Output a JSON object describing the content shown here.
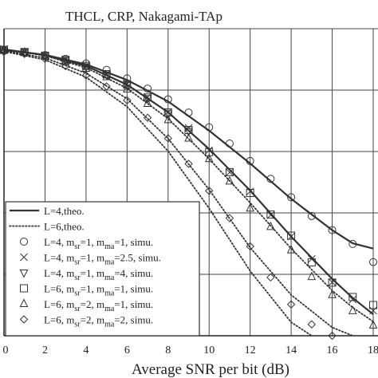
{
  "chart_data": {
    "type": "line",
    "title": "THCL, CRP, Nakagami-TAp",
    "xlabel": "Average SNR per bit (dB)",
    "ylabel": "",
    "xlim": [
      0,
      18
    ],
    "ylim": [
      0,
      1
    ],
    "x_ticks": [
      "0",
      "2",
      "4",
      "6",
      "8",
      "10",
      "12",
      "14",
      "16",
      "18"
    ],
    "grid": true,
    "legend_position": "bottom-left",
    "legend": [
      {
        "label_parts": [
          {
            "t": "L=4,theo."
          }
        ],
        "style": "solid"
      },
      {
        "label_parts": [
          {
            "t": "L=6,theo."
          }
        ],
        "style": "dotted"
      },
      {
        "label_parts": [
          {
            "t": "L=4, m"
          },
          {
            "t": "sr",
            "sub": true
          },
          {
            "t": "=1, m"
          },
          {
            "t": "ma",
            "sub": true
          },
          {
            "t": "=1, simu."
          }
        ],
        "marker": "circle"
      },
      {
        "label_parts": [
          {
            "t": "L=4, m"
          },
          {
            "t": "sr",
            "sub": true
          },
          {
            "t": "=1, m"
          },
          {
            "t": "ma",
            "sub": true
          },
          {
            "t": "=2.5, simu."
          }
        ],
        "marker": "cross"
      },
      {
        "label_parts": [
          {
            "t": "L=4, m"
          },
          {
            "t": "sr",
            "sub": true
          },
          {
            "t": "=1, m"
          },
          {
            "t": "ma",
            "sub": true
          },
          {
            "t": "=4, simu."
          }
        ],
        "marker": "triangle-down"
      },
      {
        "label_parts": [
          {
            "t": "L=6, m"
          },
          {
            "t": "sr",
            "sub": true
          },
          {
            "t": "=1, m"
          },
          {
            "t": "ma",
            "sub": true
          },
          {
            "t": "=1, simu."
          }
        ],
        "marker": "square"
      },
      {
        "label_parts": [
          {
            "t": "L=6, m"
          },
          {
            "t": "sr",
            "sub": true
          },
          {
            "t": "=2, m"
          },
          {
            "t": "ma",
            "sub": true
          },
          {
            "t": "=1, simu."
          }
        ],
        "marker": "triangle-up"
      },
      {
        "label_parts": [
          {
            "t": "L=6, m"
          },
          {
            "t": "sr",
            "sub": true
          },
          {
            "t": "=2, m"
          },
          {
            "t": "ma",
            "sub": true
          },
          {
            "t": "=2, simu."
          }
        ],
        "marker": "diamond"
      }
    ],
    "theory_curves": [
      {
        "style": "solid",
        "points": [
          [
            0,
            0.931
          ],
          [
            2,
            0.915
          ],
          [
            4,
            0.884
          ],
          [
            6,
            0.833
          ],
          [
            8,
            0.763
          ],
          [
            10,
            0.668
          ],
          [
            12,
            0.561
          ],
          [
            14,
            0.446
          ],
          [
            16,
            0.344
          ],
          [
            17,
            0.301
          ],
          [
            18,
            0.284
          ]
        ]
      },
      {
        "style": "solid",
        "points": [
          [
            0,
            0.933
          ],
          [
            2,
            0.914
          ],
          [
            4,
            0.879
          ],
          [
            6,
            0.818
          ],
          [
            8,
            0.728
          ],
          [
            10,
            0.608
          ],
          [
            12,
            0.473
          ],
          [
            14,
            0.323
          ],
          [
            16,
            0.185
          ],
          [
            17,
            0.123
          ],
          [
            18,
            0.07
          ]
        ]
      },
      {
        "style": "dotted",
        "points": [
          [
            0,
            0.933
          ],
          [
            2,
            0.912
          ],
          [
            4,
            0.873
          ],
          [
            6,
            0.806
          ],
          [
            8,
            0.707
          ],
          [
            10,
            0.576
          ],
          [
            12,
            0.433
          ],
          [
            14,
            0.284
          ],
          [
            16,
            0.147
          ],
          [
            17,
            0.092
          ],
          [
            18,
            0.046
          ]
        ]
      },
      {
        "style": "dotted",
        "points": [
          [
            0,
            0.928
          ],
          [
            2,
            0.905
          ],
          [
            4,
            0.855
          ],
          [
            6,
            0.772
          ],
          [
            8,
            0.642
          ],
          [
            10,
            0.476
          ],
          [
            12,
            0.287
          ],
          [
            14,
            0.133
          ],
          [
            16,
            0.027
          ],
          [
            17,
            0.0
          ]
        ]
      },
      {
        "style": "dotted",
        "points": [
          [
            0,
            0.926
          ],
          [
            2,
            0.899
          ],
          [
            4,
            0.842
          ],
          [
            6,
            0.746
          ],
          [
            8,
            0.601
          ],
          [
            10,
            0.415
          ],
          [
            12,
            0.211
          ],
          [
            14,
            0.044
          ],
          [
            15,
            0.0
          ]
        ]
      }
    ],
    "markers": [
      {
        "marker": "circle",
        "points": [
          [
            0,
            0.93
          ],
          [
            1,
            0.923
          ],
          [
            2,
            0.914
          ],
          [
            3,
            0.902
          ],
          [
            4,
            0.887
          ],
          [
            5,
            0.866
          ],
          [
            6,
            0.838
          ],
          [
            7,
            0.805
          ],
          [
            8,
            0.77
          ],
          [
            9,
            0.727
          ],
          [
            10,
            0.679
          ],
          [
            11,
            0.626
          ],
          [
            12,
            0.569
          ],
          [
            13,
            0.511
          ],
          [
            14,
            0.451
          ],
          [
            15,
            0.39
          ],
          [
            16,
            0.344
          ],
          [
            17,
            0.299
          ],
          [
            18,
            0.24
          ]
        ]
      },
      {
        "marker": "cross",
        "points": [
          [
            0,
            0.934
          ],
          [
            1,
            0.925
          ],
          [
            2,
            0.913
          ],
          [
            3,
            0.899
          ],
          [
            4,
            0.88
          ],
          [
            5,
            0.853
          ],
          [
            6,
            0.82
          ],
          [
            7,
            0.777
          ],
          [
            8,
            0.729
          ],
          [
            9,
            0.677
          ],
          [
            10,
            0.604
          ],
          [
            11,
            0.532
          ],
          [
            12,
            0.47
          ],
          [
            13,
            0.393
          ],
          [
            14,
            0.323
          ],
          [
            15,
            0.25
          ],
          [
            16,
            0.174
          ],
          [
            17,
            0.118
          ],
          [
            18,
            0.082
          ]
        ]
      },
      {
        "marker": "triangle-down",
        "points": [
          [
            0,
            0.928
          ],
          [
            1,
            0.921
          ],
          [
            2,
            0.911
          ],
          [
            3,
            0.897
          ],
          [
            4,
            0.876
          ],
          [
            5,
            0.85
          ],
          [
            6,
            0.815
          ],
          [
            7,
            0.773
          ],
          [
            8,
            0.723
          ],
          [
            9,
            0.667
          ]
        ]
      },
      {
        "marker": "square",
        "points": [
          [
            0,
            0.931
          ],
          [
            1,
            0.924
          ],
          [
            2,
            0.912
          ],
          [
            3,
            0.898
          ],
          [
            4,
            0.879
          ],
          [
            5,
            0.852
          ],
          [
            6,
            0.818
          ],
          [
            7,
            0.776
          ],
          [
            8,
            0.727
          ],
          [
            9,
            0.67
          ],
          [
            10,
            0.598
          ],
          [
            11,
            0.533
          ],
          [
            12,
            0.465
          ],
          [
            13,
            0.395
          ],
          [
            14,
            0.326
          ],
          [
            15,
            0.239
          ],
          [
            16,
            0.173
          ],
          [
            17,
            0.126
          ],
          [
            18,
            0.1
          ]
        ]
      },
      {
        "marker": "triangle-up",
        "points": [
          [
            0,
            0.932
          ],
          [
            1,
            0.923
          ],
          [
            2,
            0.91
          ],
          [
            3,
            0.892
          ],
          [
            4,
            0.87
          ],
          [
            5,
            0.843
          ],
          [
            6,
            0.803
          ],
          [
            7,
            0.756
          ],
          [
            8,
            0.703
          ],
          [
            9,
            0.643
          ],
          [
            10,
            0.576
          ],
          [
            11,
            0.503
          ],
          [
            12,
            0.415
          ],
          [
            13,
            0.355
          ],
          [
            14,
            0.279
          ],
          [
            15,
            0.192
          ],
          [
            16,
            0.133
          ],
          [
            17,
            0.081
          ],
          [
            18,
            0.034
          ]
        ]
      },
      {
        "marker": "diamond",
        "points": [
          [
            0,
            0.925
          ],
          [
            1,
            0.918
          ],
          [
            2,
            0.902
          ],
          [
            3,
            0.878
          ],
          [
            4,
            0.848
          ],
          [
            5,
            0.812
          ],
          [
            6,
            0.767
          ],
          [
            7,
            0.71
          ],
          [
            8,
            0.643
          ],
          [
            9,
            0.56
          ],
          [
            10,
            0.472
          ],
          [
            11,
            0.383
          ],
          [
            12,
            0.291
          ],
          [
            13,
            0.19
          ],
          [
            14,
            0.102
          ],
          [
            15,
            0.037
          ],
          [
            16,
            0.0
          ]
        ]
      }
    ]
  }
}
